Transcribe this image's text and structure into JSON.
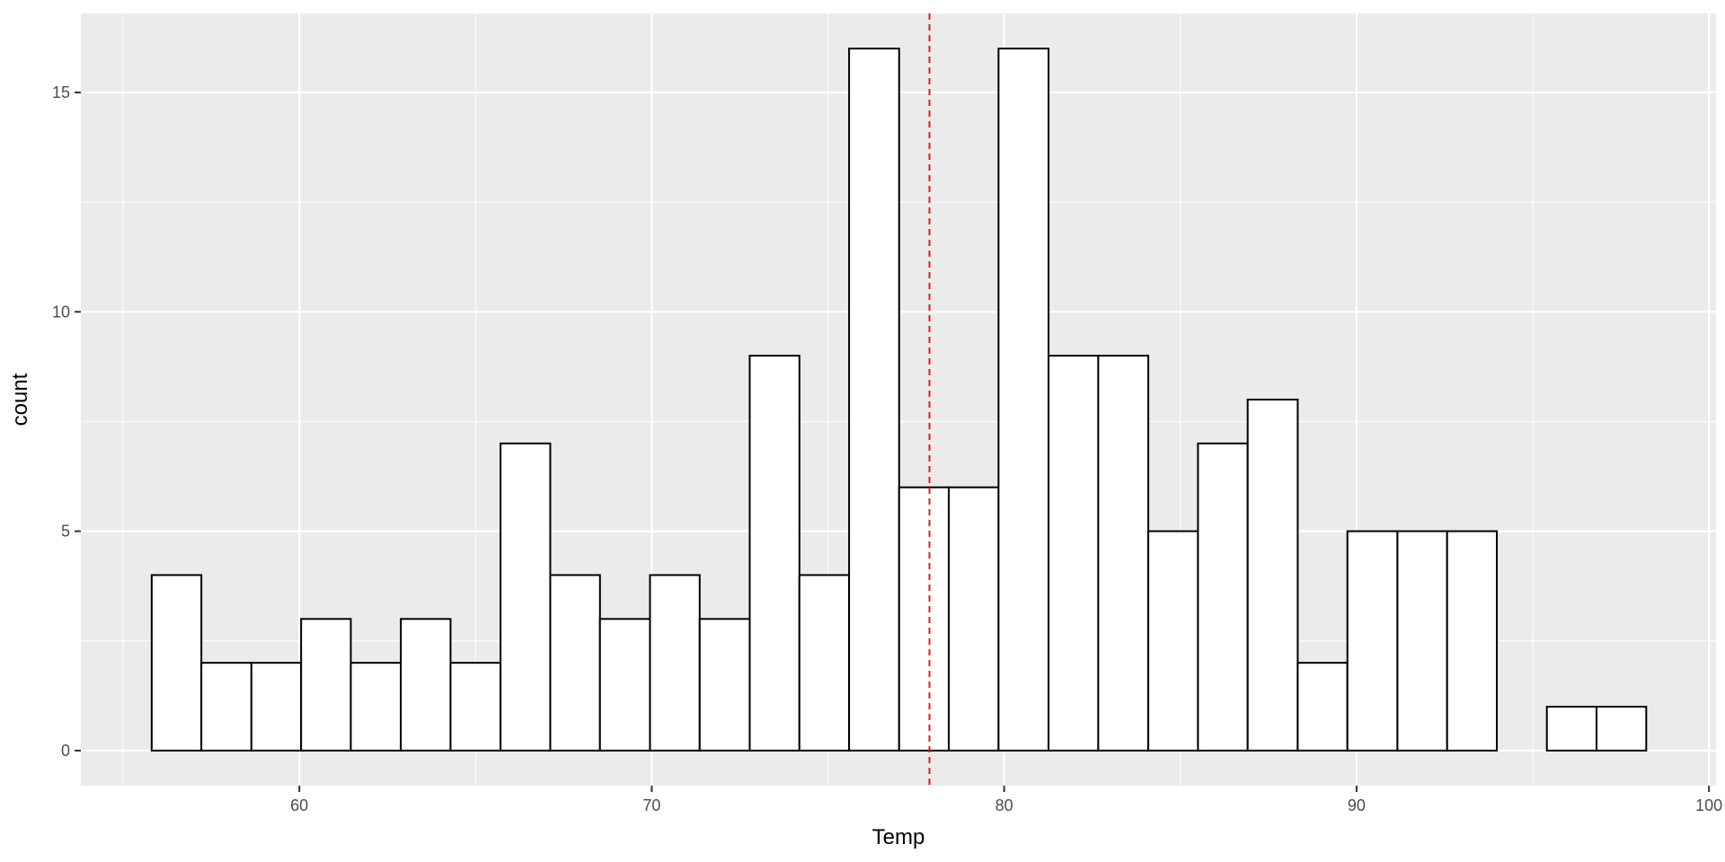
{
  "chart_data": {
    "type": "bar",
    "subtype": "histogram",
    "title": "",
    "xlabel": "Temp",
    "ylabel": "count",
    "xlim": [
      53.8,
      100.2
    ],
    "ylim": [
      -0.8,
      16.8
    ],
    "x_ticks": [
      60,
      70,
      80,
      90,
      100
    ],
    "y_ticks": [
      0,
      5,
      10,
      15
    ],
    "bin_width": 1.4138,
    "bins": [
      {
        "start": 55.81,
        "end": 57.22,
        "count": 4
      },
      {
        "start": 57.22,
        "end": 58.64,
        "count": 2
      },
      {
        "start": 58.64,
        "end": 60.05,
        "count": 2
      },
      {
        "start": 60.05,
        "end": 61.46,
        "count": 3
      },
      {
        "start": 61.46,
        "end": 62.88,
        "count": 2
      },
      {
        "start": 62.88,
        "end": 64.29,
        "count": 3
      },
      {
        "start": 64.29,
        "end": 65.71,
        "count": 2
      },
      {
        "start": 65.71,
        "end": 67.12,
        "count": 7
      },
      {
        "start": 67.12,
        "end": 68.53,
        "count": 4
      },
      {
        "start": 68.53,
        "end": 69.95,
        "count": 3
      },
      {
        "start": 69.95,
        "end": 71.36,
        "count": 4
      },
      {
        "start": 71.36,
        "end": 72.78,
        "count": 3
      },
      {
        "start": 72.78,
        "end": 74.19,
        "count": 9
      },
      {
        "start": 74.19,
        "end": 75.6,
        "count": 4
      },
      {
        "start": 75.6,
        "end": 77.02,
        "count": 16
      },
      {
        "start": 77.02,
        "end": 78.43,
        "count": 6
      },
      {
        "start": 78.43,
        "end": 79.84,
        "count": 6
      },
      {
        "start": 79.84,
        "end": 81.26,
        "count": 16
      },
      {
        "start": 81.26,
        "end": 82.67,
        "count": 9
      },
      {
        "start": 82.67,
        "end": 84.09,
        "count": 9
      },
      {
        "start": 84.09,
        "end": 85.5,
        "count": 5
      },
      {
        "start": 85.5,
        "end": 86.91,
        "count": 7
      },
      {
        "start": 86.91,
        "end": 88.33,
        "count": 8
      },
      {
        "start": 88.33,
        "end": 89.74,
        "count": 2
      },
      {
        "start": 89.74,
        "end": 91.16,
        "count": 5
      },
      {
        "start": 91.16,
        "end": 92.57,
        "count": 5
      },
      {
        "start": 92.57,
        "end": 93.98,
        "count": 5
      },
      {
        "start": 93.98,
        "end": 95.4,
        "count": 0
      },
      {
        "start": 95.4,
        "end": 96.81,
        "count": 1
      },
      {
        "start": 96.81,
        "end": 98.22,
        "count": 1
      }
    ],
    "reference_line": {
      "x": 77.88,
      "style": "dashed",
      "color": "#e41a1c"
    },
    "panel_background": "#ebebeb",
    "grid": true,
    "grid_color": "#ffffff",
    "bar_fill": "#ffffff",
    "bar_stroke": "#000000",
    "legend": "none"
  }
}
